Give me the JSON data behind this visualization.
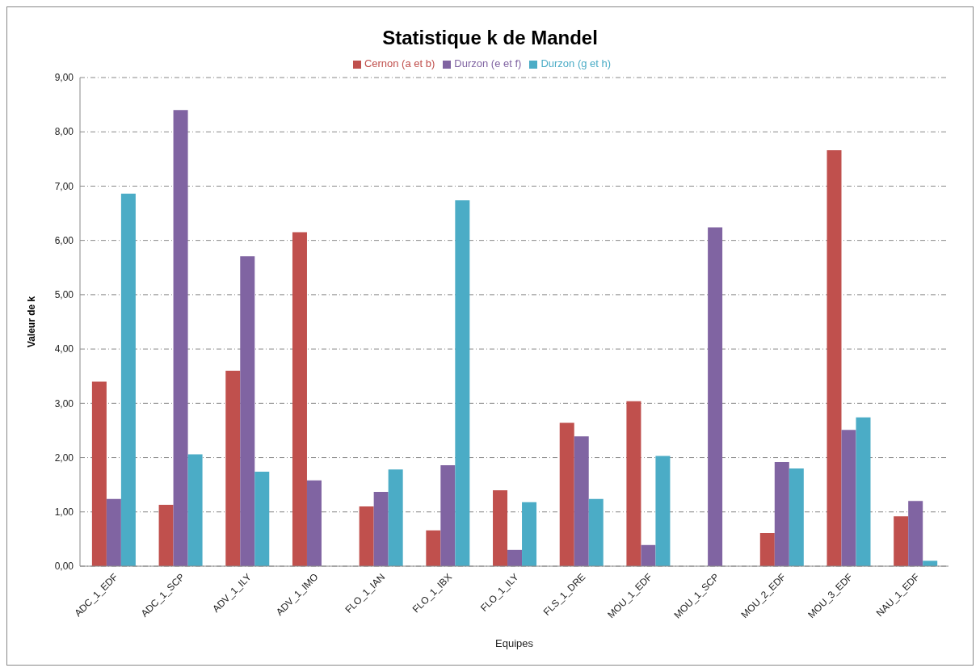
{
  "chart_data": {
    "type": "bar",
    "title": "Statistique k de Mandel",
    "xlabel": "Equipes",
    "ylabel": "Valeur de k",
    "categories": [
      "ADC_1_EDF",
      "ADC_1_SCP",
      "ADV_1_ILY",
      "ADV_1_IMO",
      "FLO_1_IAN",
      "FLO_1_IBX",
      "FLO_1_ILY",
      "FLS_1_DRE",
      "MOU_1_EDF",
      "MOU_1_SCP",
      "MOU_2_EDF",
      "MOU_3_EDF",
      "NAU_1_EDF"
    ],
    "series": [
      {
        "name": "Cernon (a et b)",
        "color": "#c0504d",
        "values": [
          3.4,
          1.13,
          3.6,
          6.15,
          1.1,
          0.66,
          1.4,
          2.64,
          3.04,
          null,
          0.61,
          7.66,
          0.92
        ]
      },
      {
        "name": "Durzon (e et f)",
        "color": "#8064a2",
        "values": [
          1.24,
          8.4,
          5.71,
          1.58,
          1.37,
          1.86,
          0.3,
          2.39,
          0.39,
          6.24,
          1.92,
          2.51,
          1.2
        ]
      },
      {
        "name": "Durzon (g et h)",
        "color": "#4bacc6",
        "values": [
          6.86,
          2.06,
          1.74,
          null,
          1.78,
          6.74,
          1.18,
          1.24,
          2.03,
          null,
          1.8,
          2.74,
          0.1
        ]
      }
    ],
    "ylim": [
      0,
      9
    ],
    "yticks": [
      {
        "value": 0,
        "label": "0,00"
      },
      {
        "value": 1,
        "label": "1,00"
      },
      {
        "value": 2,
        "label": "2,00"
      },
      {
        "value": 3,
        "label": "3,00"
      },
      {
        "value": 4,
        "label": "4,00"
      },
      {
        "value": 5,
        "label": "5,00"
      },
      {
        "value": 6,
        "label": "6,00"
      },
      {
        "value": 7,
        "label": "7,00"
      },
      {
        "value": 8,
        "label": "8,00"
      },
      {
        "value": 9,
        "label": "9,00"
      }
    ],
    "grid": "y",
    "legend": "top"
  }
}
